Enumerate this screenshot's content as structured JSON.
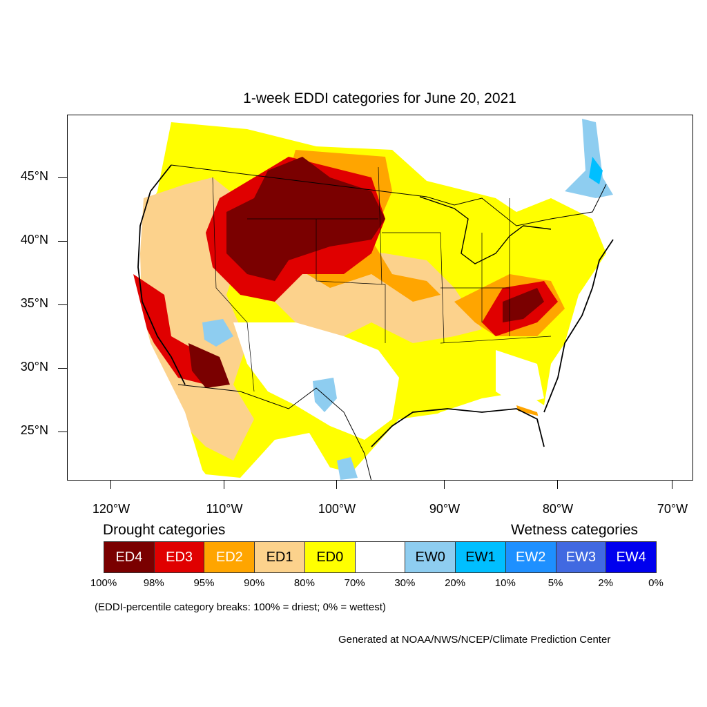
{
  "title": "1-week EDDI categories for June 20, 2021",
  "lat_ticks": [
    "45°N",
    "40°N",
    "35°N",
    "30°N",
    "25°N"
  ],
  "lon_ticks": [
    "120°W",
    "110°W",
    "100°W",
    "90°W",
    "80°W",
    "70°W"
  ],
  "legend": {
    "drought_heading": "Drought categories",
    "wetness_heading": "Wetness categories",
    "categories": [
      {
        "label": "ED4",
        "color": "#7a0000",
        "text_color": "#ffffff"
      },
      {
        "label": "ED3",
        "color": "#e00000",
        "text_color": "#ffffff"
      },
      {
        "label": "ED2",
        "color": "#ffa500",
        "text_color": "#ffffff"
      },
      {
        "label": "ED1",
        "color": "#fcd28c",
        "text_color": "#000000"
      },
      {
        "label": "ED0",
        "color": "#ffff00",
        "text_color": "#000000"
      },
      {
        "label": "",
        "color": "#ffffff",
        "text_color": "#000000"
      },
      {
        "label": "EW0",
        "color": "#8ecdf0",
        "text_color": "#000000"
      },
      {
        "label": "EW1",
        "color": "#00bfff",
        "text_color": "#000000"
      },
      {
        "label": "EW2",
        "color": "#1e90ff",
        "text_color": "#ffffff"
      },
      {
        "label": "EW3",
        "color": "#4169e1",
        "text_color": "#ffffff"
      },
      {
        "label": "EW4",
        "color": "#0000ee",
        "text_color": "#ffffff"
      }
    ],
    "percentiles": [
      "100%",
      "98%",
      "95%",
      "90%",
      "80%",
      "70%",
      "30%",
      "20%",
      "10%",
      "5%",
      "2%",
      "0%"
    ]
  },
  "note": "(EDDI-percentile category breaks: 100% = driest; 0% = wettest)",
  "credit": "Generated at NOAA/NWS/NCEP/Climate Prediction Center",
  "map": {
    "lat_range": [
      21,
      49.5
    ],
    "lon_range": [
      -124,
      -68.5
    ],
    "background_color": "#ffffff",
    "regions": [
      {
        "category": "ED0",
        "description": "northern plains and canadian prairies fringe"
      },
      {
        "category": "ED4",
        "description": "Wyoming, Montana, Dakotas, Colorado, Utah core"
      },
      {
        "category": "ED4",
        "description": "Arizona and Sonora"
      },
      {
        "category": "ED4",
        "description": "Virginia and Carolinas Appalachia"
      },
      {
        "category": "EW0",
        "description": "northern Arizona and New Mexico"
      },
      {
        "category": "EW0",
        "description": "southwest Texas and Coahuila"
      },
      {
        "category": "EW0",
        "description": "St. Lawrence valley Quebec"
      }
    ]
  }
}
